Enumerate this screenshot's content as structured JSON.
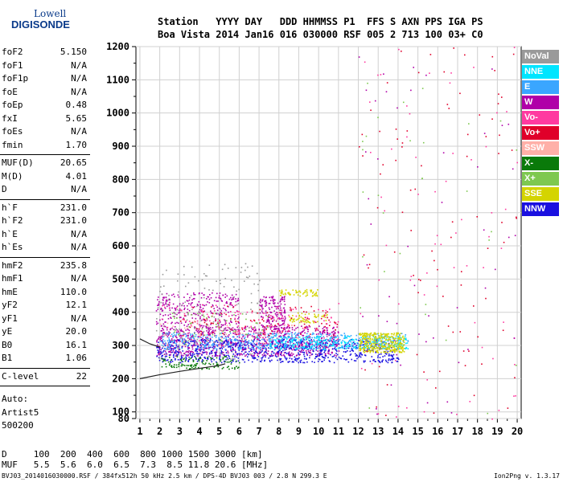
{
  "logo": {
    "line1": "Lowell",
    "line2": "DIGISONDE"
  },
  "header": {
    "line1": "Station   YYYY DAY   DDD HHMMSS P1  FFS S AXN PPS IGA PS",
    "line2": "Boa Vista 2014 Jan16 016 030000 RSF 005 2 713 100 03+ C0"
  },
  "params_group1": [
    {
      "label": "foF2",
      "value": "5.150"
    },
    {
      "label": "foF1",
      "value": "N/A"
    },
    {
      "label": "foF1p",
      "value": "N/A"
    },
    {
      "label": "foE",
      "value": "N/A"
    },
    {
      "label": "foEp",
      "value": "0.48"
    },
    {
      "label": "fxI",
      "value": "5.65"
    },
    {
      "label": "foEs",
      "value": "N/A"
    },
    {
      "label": "fmin",
      "value": "1.70"
    }
  ],
  "params_group2": [
    {
      "label": "MUF(D)",
      "value": "20.65"
    },
    {
      "label": "M(D)",
      "value": "4.01"
    },
    {
      "label": "D",
      "value": "N/A"
    }
  ],
  "params_group3": [
    {
      "label": "h`F",
      "value": "231.0"
    },
    {
      "label": "h`F2",
      "value": "231.0"
    },
    {
      "label": "h`E",
      "value": "N/A"
    },
    {
      "label": "h`Es",
      "value": "N/A"
    }
  ],
  "params_group4": [
    {
      "label": "hmF2",
      "value": "235.8"
    },
    {
      "label": "hmF1",
      "value": "N/A"
    },
    {
      "label": "hmE",
      "value": "110.0"
    },
    {
      "label": "yF2",
      "value": "12.1"
    },
    {
      "label": "yF1",
      "value": "N/A"
    },
    {
      "label": "yE",
      "value": "20.0"
    },
    {
      "label": "B0",
      "value": "16.1"
    },
    {
      "label": "B1",
      "value": "1.06"
    }
  ],
  "params_group5": [
    {
      "label": "C-level",
      "value": "22"
    }
  ],
  "autoscale": {
    "line1": "Auto:",
    "line2": "Artist5",
    "line3": "500200"
  },
  "legend": [
    {
      "label": "NoVal",
      "color": "#9a9a9a"
    },
    {
      "label": "NNE",
      "color": "#00e5ff"
    },
    {
      "label": "E",
      "color": "#3aa6ff"
    },
    {
      "label": "W",
      "color": "#b000a8"
    },
    {
      "label": "Vo-",
      "color": "#ff3aa0"
    },
    {
      "label": "Vo+",
      "color": "#e0002a"
    },
    {
      "label": "SSW",
      "color": "#ffb0a8"
    },
    {
      "label": "X-",
      "color": "#0a7a0a"
    },
    {
      "label": "X+",
      "color": "#7ec850"
    },
    {
      "label": "SSE",
      "color": "#d4d400"
    },
    {
      "label": "NNW",
      "color": "#1a10e0"
    }
  ],
  "bottom_table": {
    "line1": "D     100  200  400  600  800 1000 1500 3000 [km]",
    "line2": "MUF   5.5  5.6  6.0  6.5  7.3  8.5 11.8 20.6 [MHz]"
  },
  "footer": {
    "left": "BVJ03_2014016030000.RSF / 384fx512h 50 kHz 2.5 km / DPS-4D BVJ03 003 / 2.8 N 299.3 E",
    "right": "Ion2Png v. 1.3.17"
  },
  "chart_data": {
    "type": "scatter",
    "title": "",
    "xlabel": "",
    "ylabel": "",
    "xlim": [
      0.8,
      20.2
    ],
    "ylim": [
      80,
      1200
    ],
    "x_ticks": [
      1,
      2,
      3,
      4,
      5,
      6,
      7,
      8,
      9,
      10,
      11,
      12,
      13,
      14,
      15,
      16,
      17,
      18,
      19,
      20
    ],
    "y_ticks": [
      80,
      100,
      200,
      300,
      400,
      500,
      600,
      700,
      800,
      900,
      1000,
      1100,
      1200
    ],
    "grid": true,
    "clusters": [
      {
        "series": "W",
        "x": [
          1.8,
          11.0
        ],
        "y": [
          270,
          360
        ],
        "n": 900
      },
      {
        "series": "W",
        "x": [
          1.8,
          6.0
        ],
        "y": [
          360,
          460
        ],
        "n": 260
      },
      {
        "series": "W",
        "x": [
          7.0,
          8.3
        ],
        "y": [
          350,
          450
        ],
        "n": 160
      },
      {
        "series": "NNW",
        "x": [
          1.8,
          14.0
        ],
        "y": [
          250,
          320
        ],
        "n": 800
      },
      {
        "series": "E",
        "x": [
          2.0,
          14.5
        ],
        "y": [
          290,
          340
        ],
        "n": 500
      },
      {
        "series": "NNE",
        "x": [
          7.5,
          14.5
        ],
        "y": [
          290,
          330
        ],
        "n": 300
      },
      {
        "series": "SSE",
        "x": [
          12.0,
          14.3
        ],
        "y": [
          280,
          340
        ],
        "n": 350
      },
      {
        "series": "SSE",
        "x": [
          8.5,
          10.5
        ],
        "y": [
          370,
          400
        ],
        "n": 60
      },
      {
        "series": "SSE",
        "x": [
          8.0,
          10.0
        ],
        "y": [
          450,
          470
        ],
        "n": 60
      },
      {
        "series": "X-",
        "x": [
          2.0,
          6.0
        ],
        "y": [
          230,
          270
        ],
        "n": 120
      },
      {
        "series": "Vo+",
        "x": [
          3.0,
          11.0
        ],
        "y": [
          330,
          420
        ],
        "n": 120
      },
      {
        "series": "Vo-",
        "x": [
          2.0,
          11.0
        ],
        "y": [
          300,
          430
        ],
        "n": 140
      },
      {
        "series": "SSW",
        "x": [
          2.0,
          9.0
        ],
        "y": [
          300,
          380
        ],
        "n": 50
      },
      {
        "series": "NoVal",
        "x": [
          1.8,
          7.0
        ],
        "y": [
          260,
          550
        ],
        "n": 150
      },
      {
        "series": "X+",
        "x": [
          2.5,
          7.5
        ],
        "y": [
          300,
          400
        ],
        "n": 60
      },
      {
        "series": "Vo+",
        "x": [
          12.0,
          20.0
        ],
        "y": [
          80,
          1200
        ],
        "n": 90
      },
      {
        "series": "Vo-",
        "x": [
          12.0,
          20.0
        ],
        "y": [
          80,
          1200
        ],
        "n": 70
      },
      {
        "series": "W",
        "x": [
          12.0,
          20.0
        ],
        "y": [
          80,
          1200
        ],
        "n": 50
      },
      {
        "series": "X+",
        "x": [
          12.0,
          20.0
        ],
        "y": [
          80,
          1200
        ],
        "n": 30
      }
    ],
    "trace_lines": [
      {
        "name": "O-trace",
        "x": [
          1.0,
          2.0,
          3.0,
          4.0,
          5.0,
          5.3
        ],
        "y": [
          200,
          212,
          222,
          231,
          240,
          245
        ]
      },
      {
        "name": "upper",
        "x": [
          1.0,
          1.5,
          2.0
        ],
        "y": [
          320,
          305,
          295
        ]
      }
    ]
  }
}
